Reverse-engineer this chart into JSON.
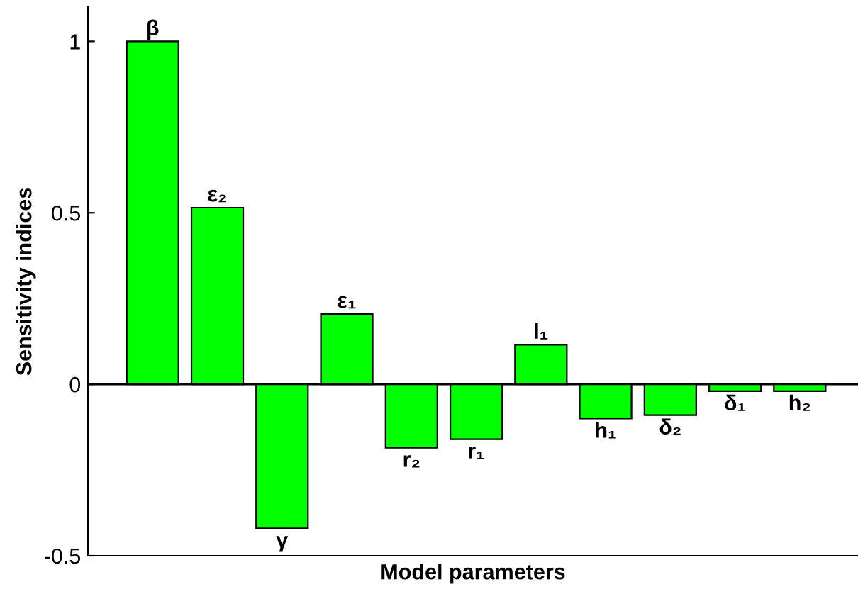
{
  "chart_data": {
    "type": "bar",
    "xlabel": "Model parameters",
    "ylabel": "Sensitivity indices",
    "categories": [
      "β",
      "ε₂",
      "γ",
      "ε₁",
      "r₂",
      "r₁",
      "l₁",
      "h₁",
      "δ₂",
      "δ₁",
      "h₂"
    ],
    "values": [
      1.0,
      0.515,
      -0.42,
      0.205,
      -0.185,
      -0.16,
      0.115,
      -0.1,
      -0.09,
      -0.02,
      -0.02
    ],
    "color": "#00ff00",
    "ylim": [
      -0.5,
      1.1
    ],
    "yticks": [
      -0.5,
      0,
      0.5,
      1
    ],
    "grid": false,
    "tick_labels": "y"
  }
}
